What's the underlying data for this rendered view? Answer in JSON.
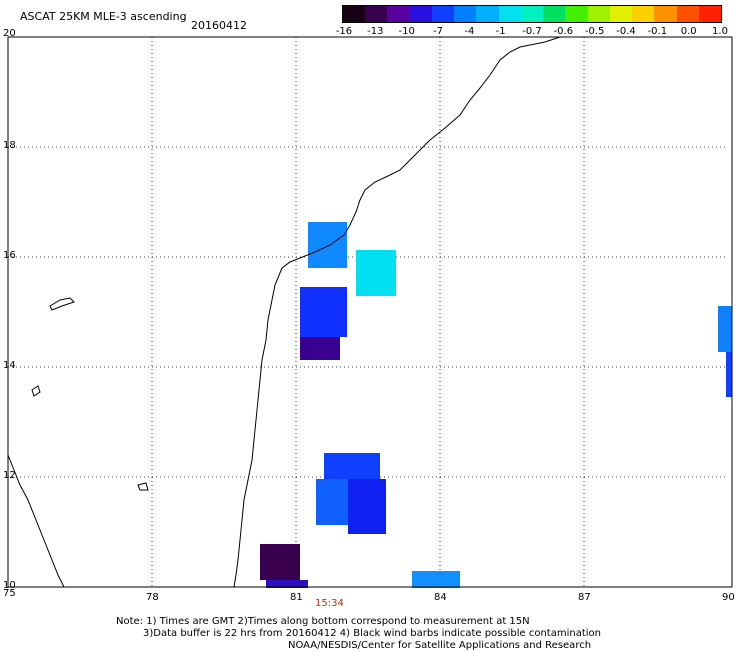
{
  "title": "ASCAT 25KM MLE-3 ascending",
  "date": "20160412",
  "time_label": "15:34",
  "colorbar": {
    "labels": [
      "-16",
      "-13",
      "-10",
      "-7",
      "-4",
      "-1",
      "-0.7",
      "-0.6",
      "-0.5",
      "-0.4",
      "-0.1",
      "0.0",
      "1.0"
    ],
    "colors": [
      "#1a0014",
      "#3a0050",
      "#5a00a0",
      "#2a10e0",
      "#1040ff",
      "#0080ff",
      "#00b0ff",
      "#00e0f0",
      "#00f0c0",
      "#00e060",
      "#40f000",
      "#a0f000",
      "#e0f000",
      "#ffd000",
      "#ff9000",
      "#ff5000",
      "#ff2000"
    ]
  },
  "axes": {
    "x_ticks": [
      "75",
      "78",
      "81",
      "84",
      "87",
      "90"
    ],
    "y_ticks": [
      "20",
      "18",
      "16",
      "14",
      "12",
      "10"
    ]
  },
  "notes": [
    "Note: 1) Times are GMT 2)Times along bottom correspond to measurement at 15N",
    "3)Data buffer is 22 hrs from 20160412 4) Black wind barbs indicate possible contamination",
    "NOAA/NESDIS/Center for Satellite Applications and Research"
  ]
}
